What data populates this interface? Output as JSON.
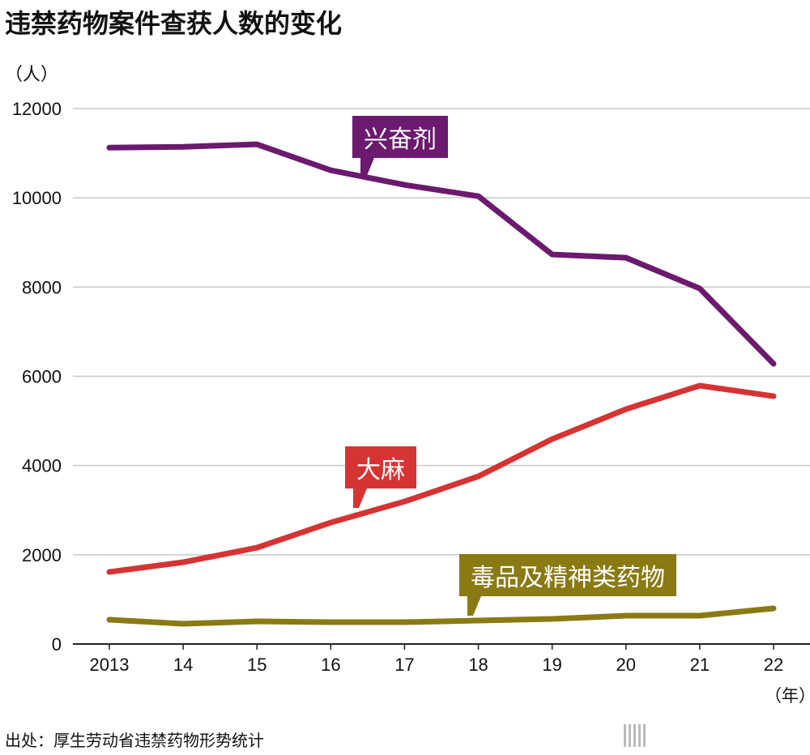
{
  "title": "违禁药物案件查获人数的变化",
  "source": "出处：厚生劳动省违禁药物形势统计",
  "logo": {
    "name": "nippon",
    "dot": ".",
    "com": "com"
  },
  "chart_data": {
    "type": "line",
    "title": "违禁药物案件查获人数的变化",
    "ylabel": "（人）",
    "xlabel": "（年）",
    "ylim": [
      0,
      12000
    ],
    "yticks": [
      0,
      2000,
      4000,
      6000,
      8000,
      10000,
      12000
    ],
    "categories": [
      "2013",
      "14",
      "15",
      "16",
      "17",
      "18",
      "19",
      "20",
      "21",
      "22"
    ],
    "grid": true,
    "series": [
      {
        "name": "兴奋剂",
        "color": "#6b1a6e",
        "values": [
          11125,
          11143,
          11198,
          10617,
          10290,
          10036,
          8730,
          8657,
          7967,
          6280
        ]
      },
      {
        "name": "大麻",
        "color": "#d63333",
        "values": [
          1615,
          1833,
          2160,
          2722,
          3194,
          3757,
          4592,
          5263,
          5790,
          5554
        ]
      },
      {
        "name": "毒品及精神类药物",
        "color": "#8a7a14",
        "values": [
          544,
          454,
          508,
          490,
          490,
          526,
          563,
          635,
          635,
          799
        ]
      }
    ]
  }
}
